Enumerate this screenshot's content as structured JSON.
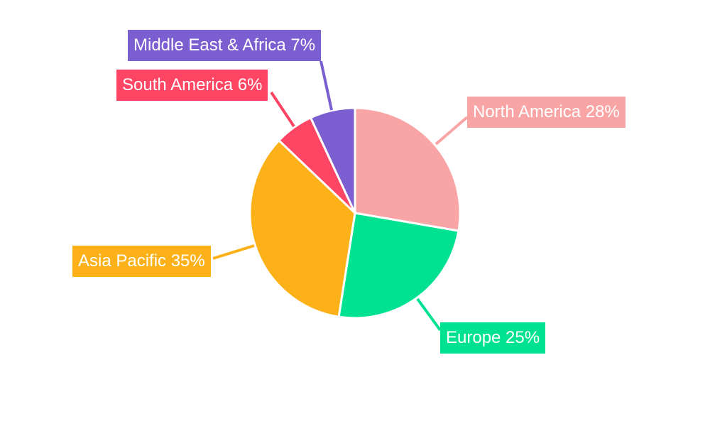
{
  "chart_data": {
    "type": "pie",
    "title": "",
    "start_angle": "12 o'clock",
    "direction": "clockwise",
    "slices": [
      {
        "label": "North America",
        "value": 28,
        "text": "North America 28%",
        "color": "#F9A5A5"
      },
      {
        "label": "Europe",
        "value": 25,
        "text": "Europe 25%",
        "color": "#00E291"
      },
      {
        "label": "Asia Pacific",
        "value": 35,
        "text": "Asia Pacific 35%",
        "color": "#FDB119"
      },
      {
        "label": "South America",
        "value": 6,
        "text": "South America 6%",
        "color": "#FF4564"
      },
      {
        "label": "Middle East & Africa",
        "value": 7,
        "text": "Middle East & Africa 7%",
        "color": "#7B5ED0"
      }
    ],
    "legend": "none"
  }
}
